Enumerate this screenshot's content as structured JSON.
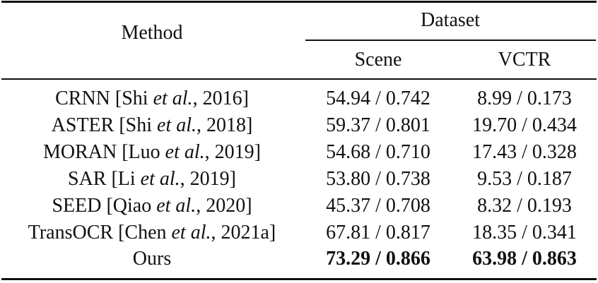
{
  "table": {
    "header": {
      "method": "Method",
      "dataset": "Dataset",
      "columns": [
        "Scene",
        "VCTR"
      ]
    },
    "rows": [
      {
        "method": [
          "CRNN [Shi ",
          "et al.",
          ", 2016]"
        ],
        "values": [
          "54.94 / 0.742",
          "8.99 / 0.173"
        ]
      },
      {
        "method": [
          "ASTER [Shi ",
          "et al.",
          ", 2018]"
        ],
        "values": [
          "59.37 / 0.801",
          "19.70 / 0.434"
        ]
      },
      {
        "method": [
          "MORAN [Luo ",
          "et al.",
          ", 2019]"
        ],
        "values": [
          "54.68 / 0.710",
          "17.43 / 0.328"
        ]
      },
      {
        "method": [
          "SAR [Li ",
          "et al.",
          ", 2019]"
        ],
        "values": [
          "53.80 / 0.738",
          "9.53 / 0.187"
        ]
      },
      {
        "method": [
          "SEED [Qiao ",
          "et al.",
          ", 2020]"
        ],
        "values": [
          "45.37 / 0.708",
          "8.32 / 0.193"
        ]
      },
      {
        "method": [
          "TransOCR [Chen ",
          "et al.",
          ", 2021a]"
        ],
        "values": [
          "67.81 / 0.817",
          "18.35 / 0.341"
        ]
      },
      {
        "method": [
          "Ours"
        ],
        "values": [
          "73.29 / 0.866",
          "63.98 / 0.863"
        ]
      }
    ]
  }
}
